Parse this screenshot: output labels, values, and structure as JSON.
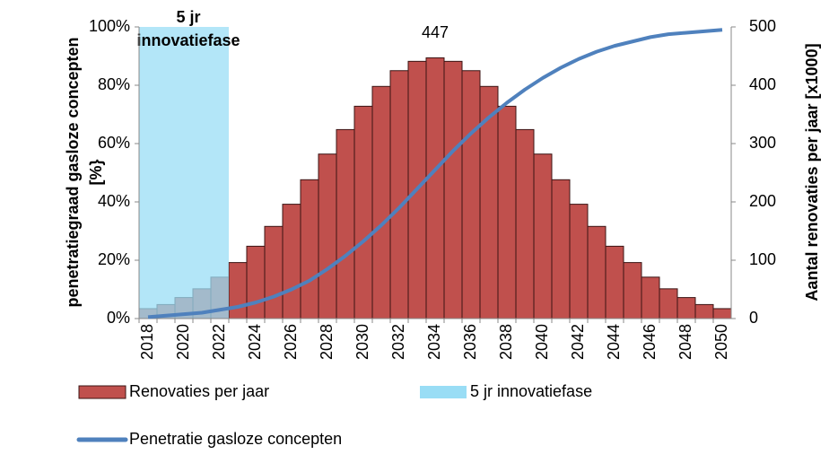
{
  "chart_data": {
    "type": "bar",
    "categories": [
      "2018",
      null,
      "2020",
      null,
      "2022",
      null,
      "2024",
      null,
      "2026",
      null,
      "2028",
      null,
      "2030",
      null,
      "2032",
      null,
      "2034",
      null,
      "2036",
      null,
      "2038",
      null,
      "2040",
      null,
      "2042",
      null,
      "2044",
      null,
      "2046",
      null,
      "2048",
      null,
      "2050"
    ],
    "series": [
      {
        "name": "Renovaties per jaar",
        "type": "bar",
        "axis": "y2",
        "color": "#c0504d",
        "values": [
          17,
          24,
          36,
          51,
          71,
          96,
          124,
          158,
          196,
          238,
          282,
          324,
          364,
          398,
          425,
          441,
          447,
          441,
          425,
          398,
          364,
          324,
          282,
          238,
          196,
          158,
          124,
          96,
          71,
          51,
          36,
          24,
          17
        ]
      },
      {
        "name": "5 jr innovatiefase",
        "type": "bar",
        "color": "#99ddf5",
        "values": [
          100,
          100,
          100,
          100,
          100,
          null,
          null,
          null,
          null,
          null,
          null,
          null,
          null,
          null,
          null,
          null,
          null,
          null,
          null,
          null,
          null,
          null,
          null,
          null,
          null,
          null,
          null,
          null,
          null,
          null,
          null,
          null,
          null
        ]
      },
      {
        "name": "Penetratie gasloze concepten",
        "type": "line",
        "color": "#4f81bd",
        "values": [
          0.5,
          1,
          1.5,
          2,
          3,
          4,
          5.5,
          7.5,
          10,
          13,
          17,
          21.5,
          26.5,
          32,
          38,
          44.5,
          51,
          57.5,
          63.5,
          69,
          74,
          78.5,
          82.5,
          86,
          89,
          91.5,
          93.5,
          95,
          96.5,
          97.5,
          98,
          98.5,
          99
        ]
      }
    ],
    "annotation": [
      "5 jr",
      "innovatiefase"
    ],
    "ylabel": [
      "penetratiegraad gasloze concepten",
      "[%}"
    ],
    "y2label": "Aantal renovaties per jaar [x1000]",
    "ylim": [
      0,
      100
    ],
    "yticks": [
      {
        "value": 0,
        "label": "0%"
      },
      {
        "value": 20,
        "label": "20%"
      },
      {
        "value": 40,
        "label": "40%"
      },
      {
        "value": 60,
        "label": "60%"
      },
      {
        "value": 80,
        "label": "80%"
      },
      {
        "value": 100,
        "label": "100%"
      }
    ],
    "y2lim": [
      0,
      500
    ],
    "y2ticks": [
      0,
      100,
      200,
      300,
      400,
      500
    ],
    "legend": "bottom"
  }
}
